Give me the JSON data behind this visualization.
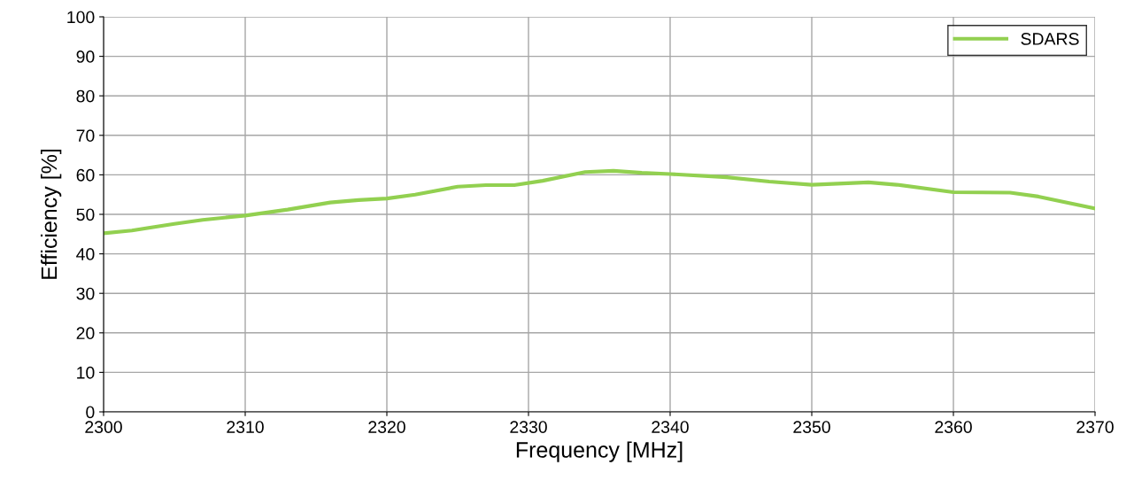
{
  "chart_data": {
    "type": "line",
    "xlabel": "Frequency [MHz]",
    "ylabel": "Efficiency [%]",
    "x": [
      2300,
      2302,
      2305,
      2307,
      2310,
      2313,
      2316,
      2318,
      2320,
      2322,
      2325,
      2327,
      2329,
      2331,
      2334,
      2336,
      2338,
      2340,
      2344,
      2347,
      2350,
      2354,
      2356,
      2360,
      2364,
      2366,
      2370
    ],
    "series": [
      {
        "name": "SDARS",
        "color": "#92d050",
        "values": [
          45.2,
          45.9,
          47.6,
          48.6,
          49.7,
          51.2,
          53.0,
          53.6,
          54.0,
          55.0,
          57.0,
          57.4,
          57.4,
          58.5,
          60.7,
          61.0,
          60.5,
          60.2,
          59.4,
          58.3,
          57.5,
          58.1,
          57.5,
          55.6,
          55.5,
          54.5,
          51.5
        ]
      }
    ],
    "xlim": [
      2300,
      2370
    ],
    "xticks": [
      2300,
      2310,
      2320,
      2330,
      2340,
      2350,
      2360,
      2370
    ],
    "ylim": [
      0,
      100
    ],
    "yticks": [
      0,
      10,
      20,
      30,
      40,
      50,
      60,
      70,
      80,
      90,
      100
    ],
    "grid": true,
    "legend": "top right",
    "marker": "none",
    "line_style": "solid"
  }
}
